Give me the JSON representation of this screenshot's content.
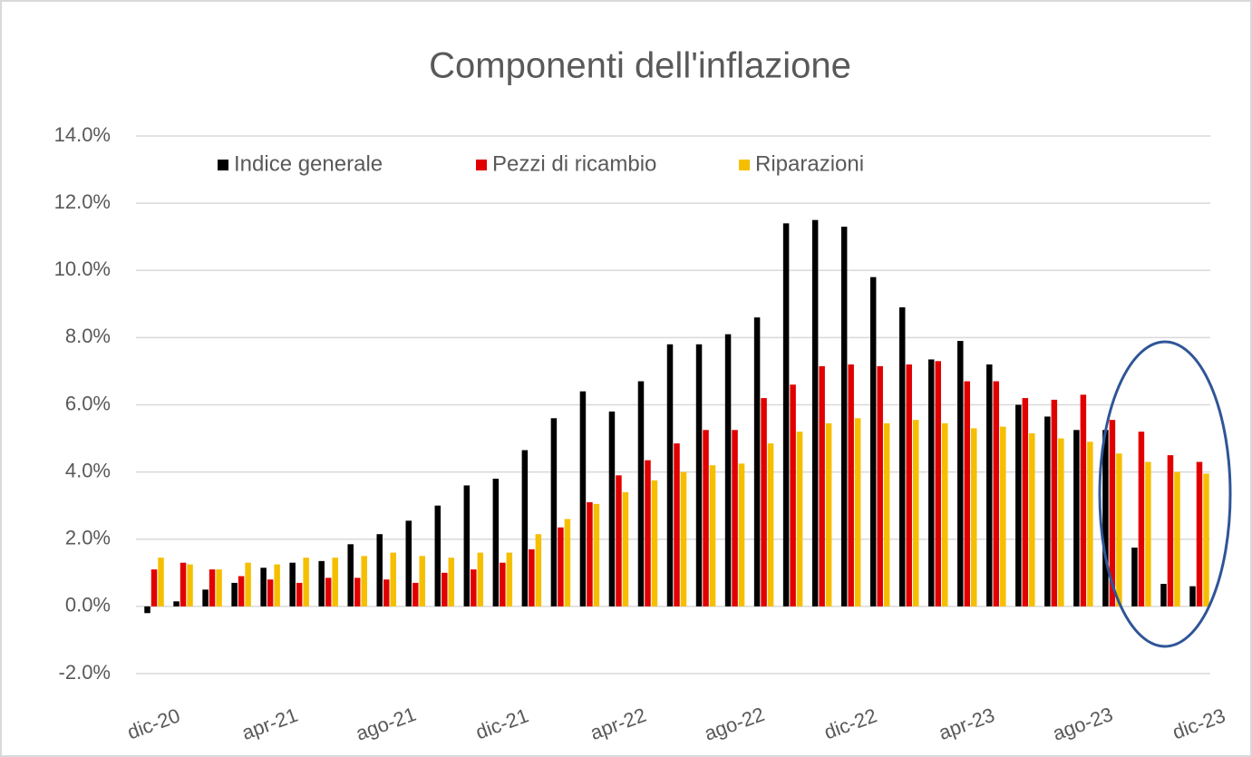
{
  "chart_data": {
    "type": "bar",
    "title": "Componenti dell'inflazione",
    "categories": [
      "dic-20",
      null,
      null,
      null,
      "apr-21",
      null,
      null,
      null,
      "ago-21",
      null,
      null,
      null,
      "dic-21",
      null,
      null,
      null,
      "apr-22",
      null,
      null,
      null,
      "ago-22",
      null,
      null,
      null,
      "dic-22",
      null,
      null,
      null,
      "apr-23",
      null,
      null,
      null,
      "ago-23",
      null,
      null,
      null,
      "dic-23"
    ],
    "series": [
      {
        "name": "Indice generale",
        "color": "#000000",
        "values": [
          -0.2,
          0.15,
          0.5,
          0.7,
          1.15,
          1.3,
          1.35,
          1.85,
          2.15,
          2.55,
          3.0,
          3.6,
          3.8,
          4.65,
          5.6,
          6.4,
          5.8,
          6.7,
          7.8,
          7.8,
          8.1,
          8.6,
          11.4,
          11.5,
          11.3,
          9.8,
          8.9,
          7.35,
          7.9,
          7.2,
          6.0,
          5.65,
          5.25,
          5.25,
          1.75,
          0.67,
          0.6
        ]
      },
      {
        "name": "Pezzi di ricambio",
        "color": "#e00000",
        "values": [
          1.1,
          1.3,
          1.1,
          0.9,
          0.8,
          0.7,
          0.85,
          0.85,
          0.8,
          0.7,
          1.0,
          1.1,
          1.3,
          1.7,
          2.35,
          3.1,
          3.9,
          4.35,
          4.85,
          5.25,
          5.25,
          6.2,
          6.6,
          7.15,
          7.2,
          7.15,
          7.2,
          7.3,
          6.7,
          6.7,
          6.2,
          6.15,
          6.3,
          5.55,
          5.2,
          4.5,
          4.3
        ]
      },
      {
        "name": "Riparazioni",
        "color": "#f5bf00",
        "values": [
          1.45,
          1.25,
          1.1,
          1.3,
          1.25,
          1.45,
          1.45,
          1.5,
          1.6,
          1.5,
          1.45,
          1.6,
          1.6,
          2.15,
          2.6,
          3.05,
          3.4,
          3.75,
          4.0,
          4.2,
          4.25,
          4.85,
          5.2,
          5.45,
          5.6,
          5.45,
          5.55,
          5.45,
          5.3,
          5.35,
          5.15,
          5.0,
          4.9,
          4.55,
          4.3,
          4.0,
          3.95
        ]
      }
    ],
    "ylim": [
      -2,
      14
    ],
    "yticks": [
      {
        "value": -2,
        "label": "-2.0%"
      },
      {
        "value": 0,
        "label": "0.0%"
      },
      {
        "value": 2,
        "label": "2.0%"
      },
      {
        "value": 4,
        "label": "4.0%"
      },
      {
        "value": 6,
        "label": "6.0%"
      },
      {
        "value": 8,
        "label": "8.0%"
      },
      {
        "value": 10,
        "label": "10.0%"
      },
      {
        "value": 12,
        "label": "12.0%"
      },
      {
        "value": 14,
        "label": "14.0%"
      }
    ],
    "grid": true,
    "legend": "top"
  }
}
